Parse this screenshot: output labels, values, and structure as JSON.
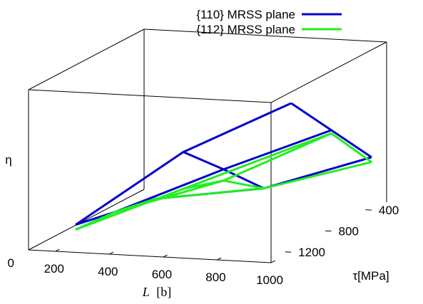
{
  "chart_data": {
    "type": "line",
    "subtype": "3d-surface-wireframe",
    "title": "",
    "xlabel": "L [b]",
    "xlabel_parts": {
      "var": "L",
      "unit": "[b]"
    },
    "ylabel": "τ[MPa]",
    "zlabel": "η",
    "x_ticks": [
      "200",
      "400",
      "600",
      "800",
      "1000"
    ],
    "y_ticks": [
      "400",
      "800",
      "1200"
    ],
    "z_ticks": [
      "0"
    ],
    "xlim": [
      100,
      1000
    ],
    "ylim": [
      1400,
      250
    ],
    "zlim": [
      0,
      1
    ],
    "x": [
      200,
      600,
      1000
    ],
    "y": [
      1200,
      800,
      400
    ],
    "legend_position": "top-right",
    "series": [
      {
        "name": "{110} MRSS plane",
        "color": "#0000cc",
        "z": [
          [
            0.1,
            0.05,
            0.0
          ],
          [
            0.59,
            0.35,
            0.1
          ],
          [
            0.93,
            0.63,
            0.33
          ]
        ]
      },
      {
        "name": "{112} MRSS plane",
        "color": "#22ee22",
        "z": [
          [
            0.07,
            0.05,
            0.0
          ],
          [
            0.36,
            0.28,
            0.1
          ],
          [
            0.65,
            0.61,
            0.3
          ]
        ]
      }
    ]
  }
}
